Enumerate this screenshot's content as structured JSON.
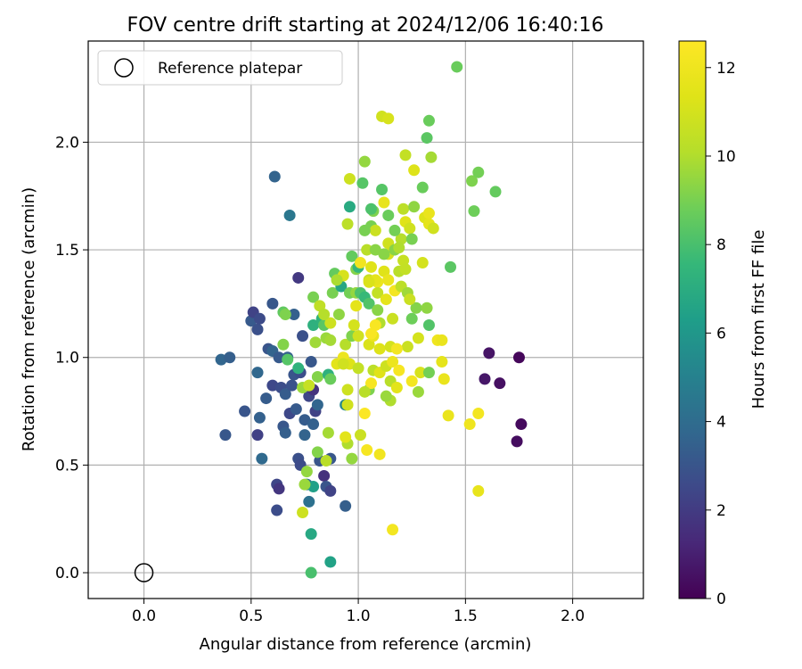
{
  "chart_data": {
    "type": "scatter",
    "title": "FOV centre drift starting at 2024/12/06 16:40:16",
    "xlabel": "Angular distance from reference (arcmin)",
    "ylabel": "Rotation from reference (arcmin)",
    "xlim": [
      -0.26,
      2.33
    ],
    "ylim": [
      -0.12,
      2.47
    ],
    "xticks": [
      0.0,
      0.5,
      1.0,
      1.5,
      2.0
    ],
    "xtick_labels": [
      "0.0",
      "0.5",
      "1.0",
      "1.5",
      "2.0"
    ],
    "yticks": [
      0.0,
      0.5,
      1.0,
      1.5,
      2.0
    ],
    "ytick_labels": [
      "0.0",
      "0.5",
      "1.0",
      "1.5",
      "2.0"
    ],
    "grid": true,
    "legend": {
      "placement": "top-left",
      "entries": [
        "Reference platepar"
      ]
    },
    "colorbar": {
      "label": "Hours from first FF file",
      "range": [
        0,
        12.6
      ],
      "ticks": [
        0,
        2,
        4,
        6,
        8,
        10,
        12
      ],
      "tick_labels": [
        "0",
        "2",
        "4",
        "6",
        "8",
        "10",
        "12"
      ],
      "colormap": "viridis"
    },
    "reference_point": {
      "x": 0.0,
      "y": 0.0
    },
    "points": [
      [
        1.75,
        1.0,
        0.2
      ],
      [
        1.76,
        0.69,
        0.3
      ],
      [
        1.74,
        0.61,
        0.4
      ],
      [
        1.66,
        0.88,
        0.5
      ],
      [
        1.61,
        1.02,
        0.6
      ],
      [
        1.59,
        0.9,
        0.7
      ],
      [
        0.36,
        0.99,
        3.7
      ],
      [
        0.4,
        1.0,
        3.4
      ],
      [
        0.47,
        0.75,
        3.0
      ],
      [
        0.38,
        0.64,
        3.1
      ],
      [
        0.5,
        1.17,
        3.2
      ],
      [
        0.51,
        1.21,
        2.3
      ],
      [
        0.53,
        1.13,
        2.8
      ],
      [
        0.54,
        1.18,
        2.6
      ],
      [
        0.53,
        0.93,
        3.8
      ],
      [
        0.54,
        0.72,
        3.5
      ],
      [
        0.53,
        0.64,
        2.2
      ],
      [
        0.55,
        0.53,
        3.9
      ],
      [
        0.57,
        0.81,
        3.3
      ],
      [
        0.58,
        1.04,
        3.0
      ],
      [
        0.6,
        1.03,
        3.6
      ],
      [
        0.6,
        0.87,
        2.5
      ],
      [
        0.6,
        1.25,
        3.1
      ],
      [
        0.61,
        1.84,
        3.6
      ],
      [
        0.62,
        0.41,
        2.4
      ],
      [
        0.62,
        0.29,
        2.7
      ],
      [
        0.63,
        0.39,
        1.8
      ],
      [
        0.63,
        1.0,
        3.2
      ],
      [
        0.64,
        0.86,
        2.7
      ],
      [
        0.65,
        0.68,
        3.1
      ],
      [
        0.66,
        0.65,
        3.4
      ],
      [
        0.66,
        0.83,
        3.3
      ],
      [
        0.67,
        1.0,
        3.5
      ],
      [
        0.68,
        0.74,
        2.5
      ],
      [
        0.69,
        0.87,
        2.9
      ],
      [
        0.7,
        1.2,
        3.5
      ],
      [
        0.68,
        1.66,
        4.5
      ],
      [
        0.7,
        0.92,
        3.0
      ],
      [
        0.71,
        0.76,
        3.2
      ],
      [
        0.72,
        0.53,
        2.8
      ],
      [
        0.73,
        0.5,
        2.6
      ],
      [
        0.72,
        1.37,
        1.9
      ],
      [
        0.73,
        0.93,
        2.7
      ],
      [
        0.74,
        1.1,
        2.8
      ],
      [
        0.75,
        0.71,
        3.3
      ],
      [
        0.75,
        0.64,
        3.6
      ],
      [
        0.77,
        0.82,
        2.4
      ],
      [
        0.79,
        0.85,
        1.7
      ],
      [
        0.79,
        0.69,
        3.5
      ],
      [
        0.78,
        0.98,
        3.1
      ],
      [
        0.8,
        0.75,
        2.3
      ],
      [
        0.81,
        0.78,
        3.7
      ],
      [
        0.82,
        0.52,
        3.0
      ],
      [
        0.84,
        0.45,
        1.6
      ],
      [
        0.85,
        0.4,
        3.0
      ],
      [
        0.87,
        0.53,
        3.1
      ],
      [
        0.87,
        0.38,
        2.3
      ],
      [
        0.94,
        0.31,
        3.4
      ],
      [
        0.76,
        0.41,
        4.0
      ],
      [
        0.77,
        0.33,
        4.2
      ],
      [
        0.78,
        0.18,
        6.8
      ],
      [
        0.78,
        0.0,
        8.0
      ],
      [
        0.87,
        0.05,
        6.5
      ],
      [
        0.79,
        0.4,
        6.4
      ],
      [
        0.65,
        1.21,
        8.5
      ],
      [
        0.66,
        1.2,
        9.1
      ],
      [
        0.65,
        1.06,
        9.2
      ],
      [
        0.67,
        0.99,
        8.3
      ],
      [
        0.72,
        0.95,
        7.3
      ],
      [
        0.74,
        0.86,
        9.6
      ],
      [
        0.74,
        0.28,
        10.8
      ],
      [
        0.75,
        0.41,
        9.6
      ],
      [
        0.76,
        0.47,
        9.5
      ],
      [
        0.77,
        0.87,
        10.6
      ],
      [
        0.79,
        1.15,
        7.2
      ],
      [
        0.79,
        1.28,
        9.0
      ],
      [
        0.8,
        1.07,
        9.7
      ],
      [
        0.81,
        0.91,
        9.2
      ],
      [
        0.81,
        0.56,
        9.2
      ],
      [
        0.82,
        1.24,
        10.4
      ],
      [
        0.83,
        1.18,
        7.3
      ],
      [
        0.84,
        1.15,
        8.4
      ],
      [
        0.85,
        1.09,
        9.6
      ],
      [
        0.86,
        0.92,
        7.2
      ],
      [
        0.85,
        0.52,
        10.2
      ],
      [
        0.86,
        0.65,
        9.8
      ],
      [
        0.87,
        0.9,
        8.7
      ],
      [
        0.87,
        1.16,
        10.8
      ],
      [
        0.88,
        1.3,
        9.0
      ],
      [
        0.89,
        1.39,
        8.6
      ],
      [
        0.9,
        0.97,
        11.5
      ],
      [
        0.91,
        1.2,
        9.4
      ],
      [
        0.92,
        1.33,
        6.7
      ],
      [
        0.93,
        1.38,
        11.1
      ],
      [
        0.93,
        1.0,
        11.9
      ],
      [
        0.94,
        1.06,
        10.1
      ],
      [
        0.94,
        0.78,
        5.2
      ],
      [
        0.95,
        0.78,
        10.9
      ],
      [
        0.95,
        0.6,
        10.0
      ],
      [
        0.96,
        1.3,
        8.9
      ],
      [
        0.96,
        0.97,
        11.3
      ],
      [
        0.97,
        1.1,
        9.1
      ],
      [
        0.97,
        1.47,
        8.6
      ],
      [
        0.97,
        0.53,
        9.5
      ],
      [
        0.98,
        1.15,
        11.0
      ],
      [
        0.99,
        1.3,
        9.5
      ],
      [
        0.99,
        1.41,
        9.2
      ],
      [
        1.0,
        1.42,
        7.5
      ],
      [
        1.0,
        0.95,
        10.5
      ],
      [
        1.01,
        1.3,
        8.1
      ],
      [
        1.01,
        0.64,
        10.7
      ],
      [
        1.02,
        1.81,
        8.3
      ],
      [
        1.03,
        1.91,
        9.5
      ],
      [
        1.03,
        1.28,
        7.6
      ],
      [
        1.04,
        1.5,
        10.2
      ],
      [
        1.05,
        1.25,
        8.2
      ],
      [
        1.05,
        1.06,
        11.2
      ],
      [
        1.05,
        0.85,
        9.1
      ],
      [
        1.05,
        1.36,
        10.6
      ],
      [
        1.06,
        1.42,
        11.4
      ],
      [
        1.06,
        1.61,
        9.0
      ],
      [
        1.07,
        1.68,
        9.1
      ],
      [
        1.07,
        1.1,
        11.8
      ],
      [
        1.07,
        0.94,
        10.3
      ],
      [
        1.08,
        1.5,
        9.3
      ],
      [
        1.08,
        1.59,
        10.7
      ],
      [
        1.09,
        1.35,
        11.9
      ],
      [
        1.09,
        1.3,
        10.5
      ],
      [
        1.09,
        1.22,
        9.3
      ],
      [
        1.1,
        1.04,
        11.3
      ],
      [
        1.1,
        1.16,
        10.0
      ],
      [
        1.1,
        0.93,
        11.4
      ],
      [
        1.11,
        2.12,
        10.9
      ],
      [
        1.11,
        1.78,
        8.3
      ],
      [
        1.12,
        1.72,
        11.7
      ],
      [
        1.12,
        1.4,
        11.4
      ],
      [
        1.13,
        1.27,
        11.6
      ],
      [
        1.13,
        0.96,
        10.8
      ],
      [
        1.14,
        2.11,
        11.1
      ],
      [
        1.14,
        1.66,
        8.7
      ],
      [
        1.14,
        1.53,
        10.9
      ],
      [
        1.14,
        1.48,
        11.0
      ],
      [
        1.15,
        1.05,
        11.0
      ],
      [
        1.15,
        0.89,
        10.2
      ],
      [
        1.15,
        0.8,
        10.0
      ],
      [
        1.16,
        1.18,
        10.7
      ],
      [
        1.16,
        0.98,
        11.9
      ],
      [
        1.17,
        1.31,
        12.2
      ],
      [
        1.17,
        1.5,
        9.3
      ],
      [
        1.18,
        0.86,
        11.5
      ],
      [
        1.19,
        1.4,
        10.2
      ],
      [
        1.2,
        1.55,
        10.1
      ],
      [
        1.2,
        1.33,
        10.3
      ],
      [
        1.21,
        1.45,
        10.6
      ],
      [
        1.21,
        1.69,
        10.3
      ],
      [
        1.22,
        1.94,
        10.5
      ],
      [
        1.22,
        1.63,
        11.4
      ],
      [
        1.23,
        1.05,
        10.7
      ],
      [
        1.23,
        1.3,
        9.7
      ],
      [
        1.24,
        1.6,
        10.9
      ],
      [
        1.25,
        1.55,
        9.0
      ],
      [
        1.25,
        1.18,
        8.8
      ],
      [
        1.26,
        1.87,
        11.3
      ],
      [
        1.26,
        1.7,
        9.4
      ],
      [
        1.27,
        1.23,
        9.2
      ],
      [
        1.28,
        1.09,
        11.0
      ],
      [
        1.28,
        0.84,
        9.6
      ],
      [
        1.29,
        0.93,
        11.1
      ],
      [
        1.3,
        1.79,
        8.7
      ],
      [
        1.3,
        1.44,
        11.0
      ],
      [
        1.31,
        1.65,
        11.3
      ],
      [
        1.32,
        2.02,
        8.4
      ],
      [
        1.33,
        1.62,
        11.6
      ],
      [
        1.33,
        1.15,
        8.2
      ],
      [
        1.33,
        0.93,
        8.9
      ],
      [
        1.34,
        1.93,
        9.8
      ],
      [
        1.35,
        1.6,
        10.9
      ],
      [
        1.33,
        1.67,
        11.8
      ],
      [
        1.33,
        2.1,
        8.7
      ],
      [
        1.32,
        1.23,
        9.4
      ],
      [
        1.37,
        1.08,
        12.0
      ],
      [
        1.39,
        1.08,
        11.8
      ],
      [
        1.39,
        0.98,
        11.6
      ],
      [
        1.4,
        0.9,
        11.8
      ],
      [
        1.43,
        1.42,
        8.4
      ],
      [
        1.42,
        0.73,
        11.8
      ],
      [
        1.46,
        2.35,
        8.7
      ],
      [
        1.52,
        0.69,
        12.0
      ],
      [
        1.53,
        1.82,
        9.1
      ],
      [
        1.54,
        1.68,
        8.8
      ],
      [
        1.56,
        1.86,
        8.9
      ],
      [
        1.56,
        0.74,
        12.2
      ],
      [
        1.56,
        0.38,
        11.7
      ],
      [
        1.64,
        1.77,
        8.6
      ],
      [
        1.18,
        1.04,
        12.2
      ],
      [
        1.19,
        0.94,
        12.3
      ],
      [
        1.08,
        1.15,
        12.4
      ],
      [
        1.06,
        0.88,
        12.3
      ],
      [
        1.03,
        0.74,
        12.5
      ],
      [
        1.04,
        0.57,
        12.3
      ],
      [
        1.1,
        0.55,
        12.1
      ],
      [
        1.16,
        0.2,
        12.2
      ],
      [
        1.06,
        1.11,
        12.4
      ],
      [
        1.25,
        0.89,
        12.2
      ],
      [
        0.99,
        1.24,
        11.6
      ],
      [
        1.01,
        1.44,
        12.1
      ],
      [
        1.08,
        1.36,
        11.6
      ],
      [
        1.14,
        1.36,
        11.8
      ],
      [
        0.94,
        0.63,
        11.5
      ],
      [
        0.93,
        0.97,
        10.9
      ],
      [
        0.95,
        1.62,
        10.3
      ],
      [
        1.03,
        1.59,
        9.0
      ],
      [
        1.06,
        1.69,
        8.1
      ],
      [
        1.19,
        1.51,
        10.0
      ],
      [
        1.22,
        1.41,
        10.5
      ],
      [
        1.24,
        1.27,
        10.7
      ],
      [
        0.9,
        1.36,
        9.9
      ],
      [
        0.87,
        1.08,
        9.8
      ],
      [
        0.84,
        1.2,
        10.1
      ],
      [
        0.95,
        0.85,
        10.8
      ],
      [
        1.03,
        0.84,
        10.2
      ],
      [
        1.13,
        0.82,
        9.6
      ],
      [
        1.12,
        1.48,
        9.3
      ],
      [
        1.17,
        1.59,
        8.9
      ],
      [
        1.0,
        1.1,
        10.9
      ],
      [
        1.05,
        1.35,
        11.2
      ],
      [
        0.96,
        1.7,
        6.9
      ],
      [
        0.96,
        1.83,
        10.8
      ]
    ]
  }
}
